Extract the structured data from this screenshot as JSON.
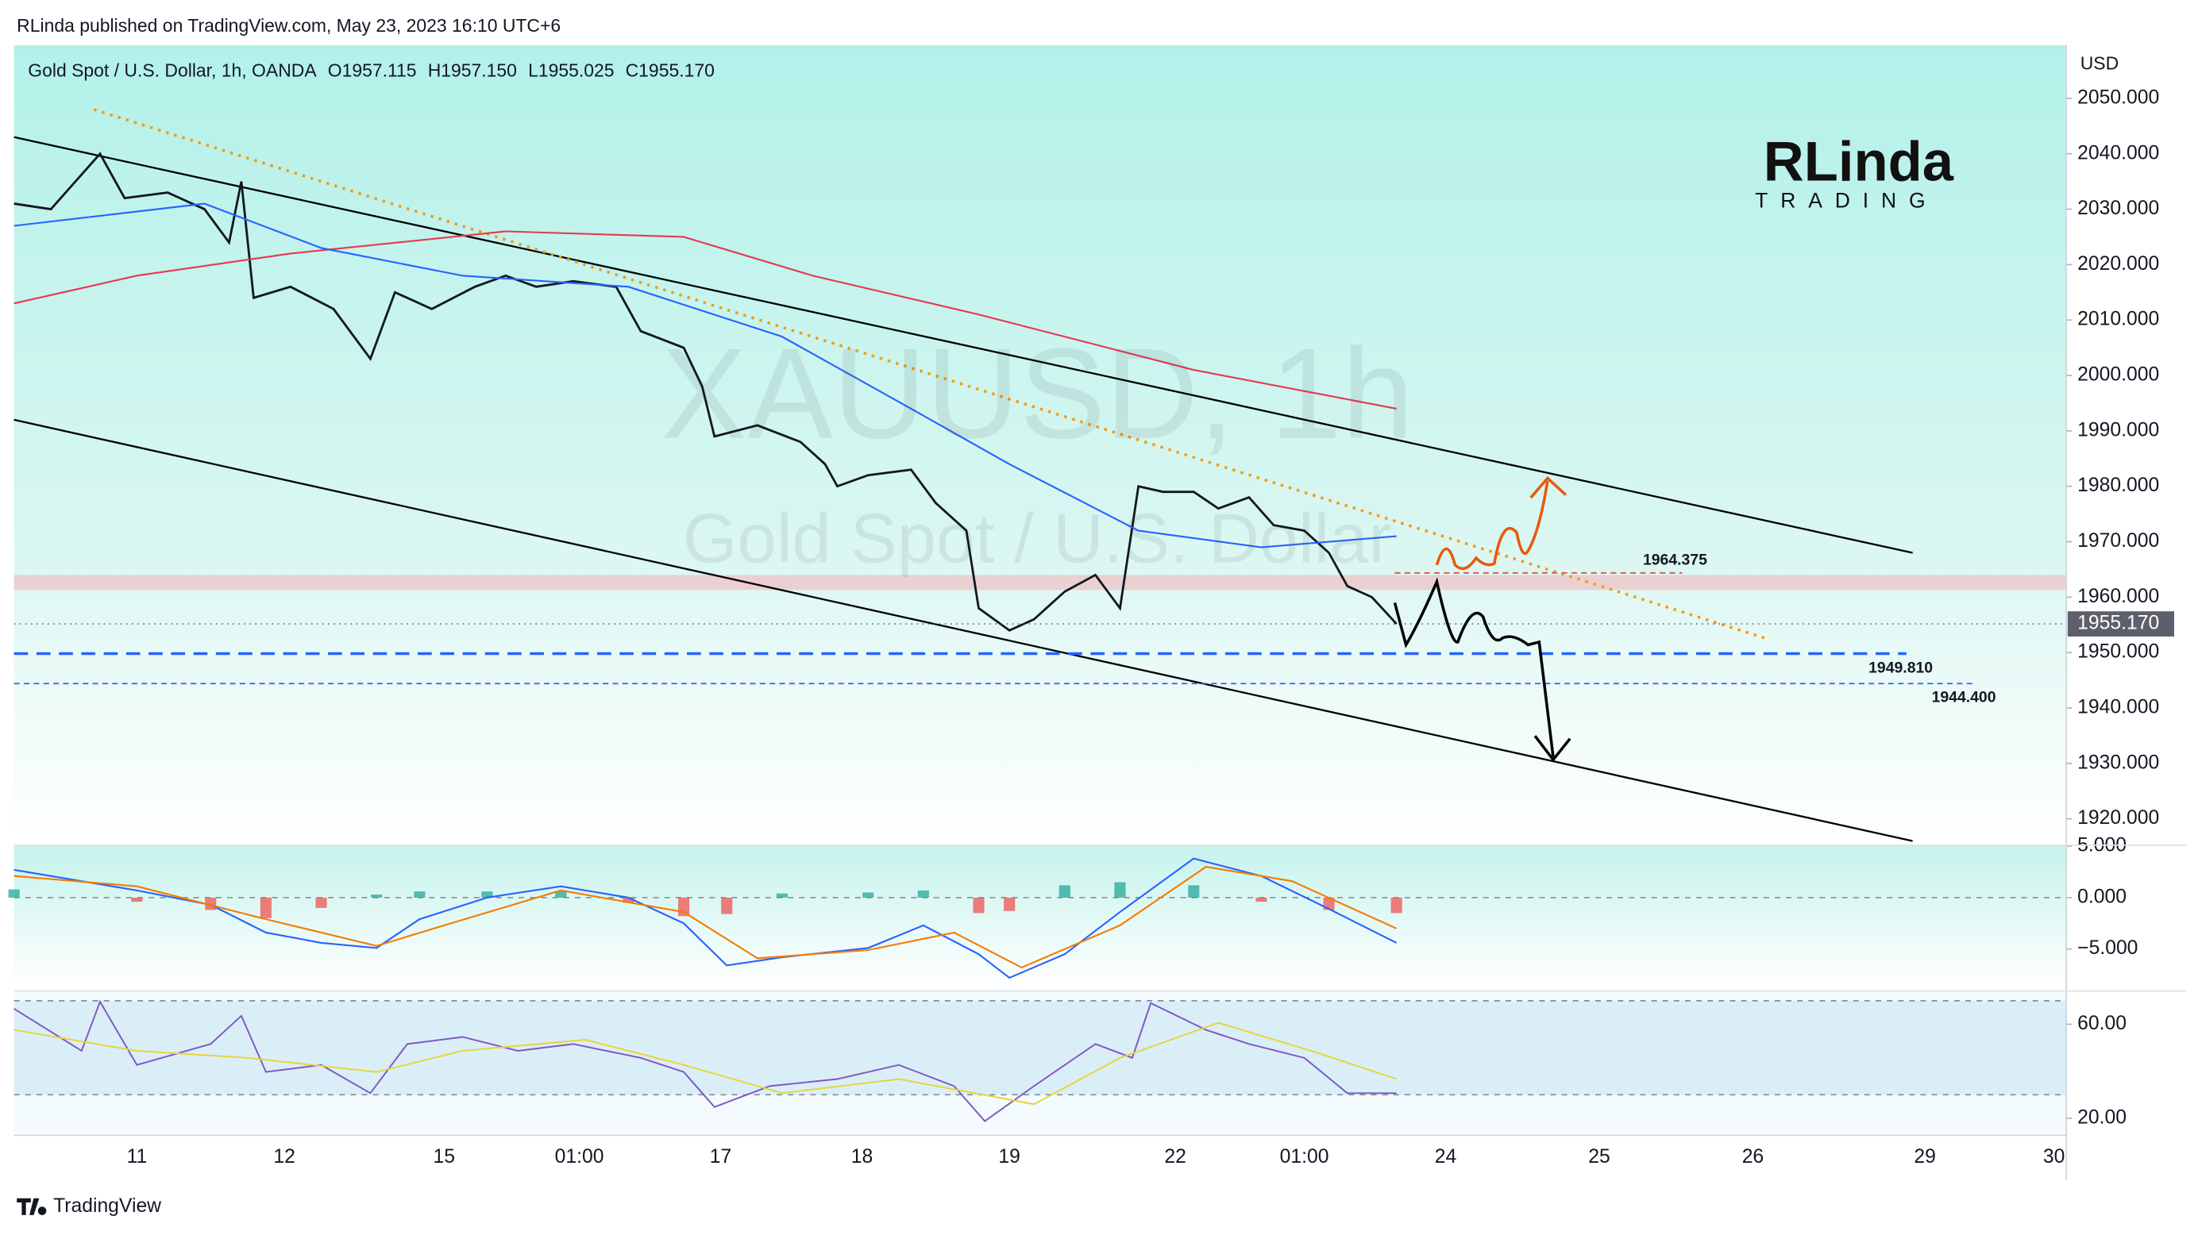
{
  "header": {
    "publisher": "RLinda published on TradingView.com, May 23, 2023 16:10 UTC+6",
    "logo": "RLinda",
    "logo_sub": "TRADING"
  },
  "footer": "TradingView",
  "chart_data": [
    {
      "type": "line",
      "title": "Gold Spot / U.S. Dollar, 1h, OANDA",
      "legend_values": [
        "O1957.115",
        "H1957.150",
        "L1955.025",
        "C1955.170"
      ],
      "watermark": [
        "XAUUSD, 1h",
        "Gold Spot / U.S. Dollar"
      ],
      "y_unit": "USD",
      "xlim": [
        0,
        334
      ],
      "xticks": [
        {
          "value": 20,
          "label": "11"
        },
        {
          "value": 44,
          "label": "12"
        },
        {
          "value": 70,
          "label": "15"
        },
        {
          "value": 92,
          "label": "01:00"
        },
        {
          "value": 115,
          "label": "17"
        },
        {
          "value": 138,
          "label": "18"
        },
        {
          "value": 162,
          "label": "19"
        },
        {
          "value": 189,
          "label": "22"
        },
        {
          "value": 210,
          "label": "01:00"
        },
        {
          "value": 233,
          "label": "24"
        },
        {
          "value": 258,
          "label": "25"
        },
        {
          "value": 283,
          "label": "26"
        },
        {
          "value": 311,
          "label": "29"
        },
        {
          "value": 332,
          "label": "30"
        }
      ],
      "ylim": [
        1915.5,
        2059.6
      ],
      "yticks": [
        {
          "value": 1920,
          "label": "1920.000"
        },
        {
          "value": 1930,
          "label": "1930.000"
        },
        {
          "value": 1940,
          "label": "1940.000"
        },
        {
          "value": 1950,
          "label": "1950.000"
        },
        {
          "value": 1960,
          "label": "1960.000"
        },
        {
          "value": 1970,
          "label": "1970.000"
        },
        {
          "value": 1980,
          "label": "1980.000"
        },
        {
          "value": 1990,
          "label": "1990.000"
        },
        {
          "value": 2000,
          "label": "2000.000"
        },
        {
          "value": 2010,
          "label": "2010.000"
        },
        {
          "value": 2020,
          "label": "2020.000"
        },
        {
          "value": 2030,
          "label": "2030.000"
        },
        {
          "value": 2040,
          "label": "2040.000"
        },
        {
          "value": 2050,
          "label": "2050.000"
        }
      ],
      "series": [
        {
          "color": "#131722",
          "width": 1.6,
          "x": [
            0,
            6,
            14,
            18,
            25,
            31,
            35,
            37,
            39,
            45,
            52,
            58,
            62,
            68,
            75,
            80,
            85,
            91,
            98,
            102,
            109,
            112,
            114,
            121,
            128,
            132,
            134,
            139,
            146,
            150,
            155,
            157,
            162,
            166,
            171,
            176,
            180,
            183,
            187,
            192,
            196,
            201,
            205,
            210,
            214,
            217,
            221,
            225
          ],
          "values": [
            2031,
            2030,
            2040,
            2032,
            2033,
            2030,
            2024,
            2035,
            2014,
            2016,
            2012,
            2003,
            2015,
            2012,
            2016,
            2018,
            2016,
            2017,
            2016,
            2008,
            2005,
            1998,
            1989,
            1991,
            1988,
            1984,
            1980,
            1982,
            1983,
            1977,
            1972,
            1958,
            1954,
            1956,
            1961,
            1964,
            1958,
            1980,
            1979,
            1979,
            1976,
            1978,
            1973,
            1972,
            1968,
            1962,
            1960,
            1955.17
          ]
        },
        {
          "color": "#e53950",
          "width": 1.2,
          "x": [
            0,
            20,
            45,
            80,
            109,
            130,
            157,
            192,
            225
          ],
          "values": [
            2013,
            2018,
            2022,
            2026,
            2025,
            2018,
            2011,
            2001,
            1994
          ]
        },
        {
          "color": "#2962ff",
          "width": 1.2,
          "x": [
            0,
            31,
            50,
            73,
            100,
            125,
            146,
            162,
            183,
            203,
            225
          ],
          "values": [
            2027,
            2031,
            2023,
            2018,
            2016,
            2007,
            1994,
            1984,
            1972,
            1969,
            1971
          ]
        }
      ],
      "trendlines": [
        {
          "x": [
            0,
            309
          ],
          "values": [
            2043,
            1968
          ],
          "color": "#000000",
          "dash": false
        },
        {
          "x": [
            0,
            309
          ],
          "values": [
            1992,
            1916
          ],
          "color": "#000000",
          "dash": false
        },
        {
          "x": [
            13,
            285
          ],
          "values": [
            2048,
            1952.6
          ],
          "color": "#f39c12",
          "dash": true
        }
      ],
      "zone": [
        1961.3,
        1964.0
      ],
      "levels": [
        {
          "value": 1964.375,
          "label": "1964.375",
          "color": "#e05050"
        },
        {
          "value": 1949.81,
          "label": "1949.810",
          "color": "#2962ff"
        },
        {
          "value": 1944.4,
          "label": "1944.400",
          "color": "#2962ff"
        }
      ],
      "last_price": {
        "value": 1955.17,
        "label": "1955.170"
      }
    },
    {
      "type": "line",
      "ylim": [
        -8.8,
        5.1
      ],
      "yticks": [
        {
          "value": 5,
          "label": "5.000"
        },
        {
          "value": 0,
          "label": "0.000"
        },
        {
          "value": -5,
          "label": "−5.000"
        }
      ],
      "dashed_levels": [
        0
      ],
      "series": [
        {
          "kind": "bar",
          "color": "#26a69a",
          "negative_color": "#ef5350",
          "x": [
            0,
            20,
            32,
            41,
            50,
            59,
            66,
            77,
            89,
            100,
            109,
            116,
            125,
            139,
            148,
            157,
            162,
            171,
            180,
            192,
            203,
            214,
            225
          ],
          "values": [
            0.8,
            -0.4,
            -1.2,
            -2,
            -1,
            0.3,
            0.6,
            0.6,
            0.6,
            -0.5,
            -1.8,
            -1.6,
            0.4,
            0.5,
            0.7,
            -1.5,
            -1.3,
            1.2,
            1.5,
            1.2,
            -0.4,
            -1.2,
            -1.5
          ]
        },
        {
          "color": "#2962ff",
          "width": 1.2,
          "x": [
            0,
            20,
            32,
            41,
            50,
            59,
            66,
            77,
            89,
            100,
            109,
            116,
            125,
            139,
            148,
            157,
            162,
            171,
            180,
            192,
            203,
            214,
            225
          ],
          "values": [
            2.7,
            0.7,
            -0.7,
            -3.4,
            -4.4,
            -4.9,
            -2.1,
            0,
            1.1,
            0,
            -2.5,
            -6.6,
            -5.8,
            -4.9,
            -2.7,
            -5.5,
            -7.8,
            -5.5,
            -1.4,
            3.8,
            2.1,
            -1.1,
            -4.4
          ]
        },
        {
          "color": "#f57c00",
          "width": 1.2,
          "x": [
            0,
            20,
            41,
            59,
            70,
            89,
            109,
            121,
            139,
            153,
            164,
            180,
            194,
            208,
            225
          ],
          "values": [
            2.1,
            1.1,
            -2.1,
            -4.7,
            -2.7,
            0.7,
            -1.4,
            -5.9,
            -5.1,
            -3.4,
            -6.8,
            -2.7,
            3,
            1.6,
            -3
          ]
        }
      ]
    },
    {
      "type": "line",
      "ylim": [
        14,
        72.4
      ],
      "yticks": [
        {
          "value": 60,
          "label": "60.00"
        },
        {
          "value": 20,
          "label": "20.00"
        }
      ],
      "band": [
        30,
        70
      ],
      "dashed_levels": [
        70,
        30
      ],
      "series": [
        {
          "color": "#7e57c2",
          "width": 1.1,
          "x": [
            0,
            11,
            14,
            20,
            32,
            37,
            41,
            50,
            58,
            64,
            73,
            82,
            91,
            102,
            109,
            114,
            123,
            134,
            144,
            153,
            158,
            166,
            176,
            182,
            185,
            194,
            201,
            210,
            217,
            225
          ],
          "values": [
            66.6,
            48.7,
            69.6,
            42.7,
            51.6,
            63.6,
            39.7,
            42.7,
            30.7,
            51.6,
            54.6,
            48.7,
            51.6,
            45.7,
            39.7,
            24.8,
            33.7,
            36.7,
            42.7,
            33.7,
            18.8,
            33.7,
            51.6,
            45.7,
            69,
            57.6,
            51.6,
            45.7,
            30.7,
            30.7
          ]
        },
        {
          "color": "#e6d535",
          "width": 1.1,
          "x": [
            0,
            20,
            38,
            59,
            73,
            93,
            109,
            125,
            144,
            166,
            180,
            196,
            212,
            225
          ],
          "values": [
            57.6,
            48.7,
            45.7,
            39.7,
            48.7,
            53.4,
            42.7,
            30.7,
            36.7,
            26,
            45.7,
            60.6,
            48,
            36.7
          ]
        }
      ]
    }
  ]
}
